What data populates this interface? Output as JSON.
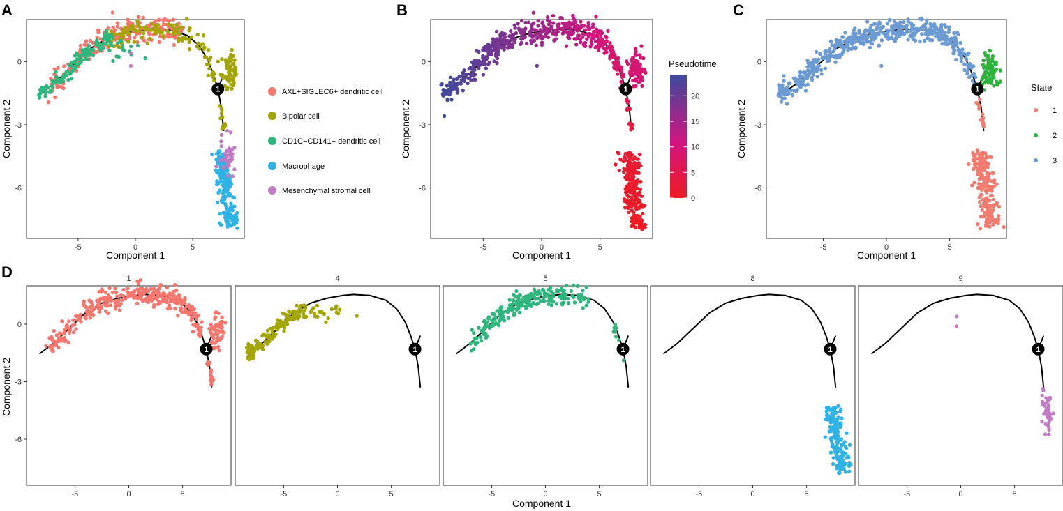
{
  "panel_letters": [
    "A",
    "B",
    "C",
    "D"
  ],
  "axes": {
    "xlabel": "Component 1",
    "ylabel": "Component 2"
  },
  "branch_node_label": "1",
  "colors": {
    "AXL+SIGLEC6+ dendritic cell": "#F8766D",
    "Bipolar cell": "#A3A500",
    "CD1C-CD141- dendritic cell": "#2EB67D",
    "Macrophage": "#2FB2E6",
    "Mesenchymal stromal cell": "#C17BC4",
    "state_1": "#F37B6F",
    "state_2": "#2DB33B",
    "state_3": "#6C9BD3",
    "trajectory": "#000000"
  },
  "legend_A": {
    "items": [
      "AXL+SIGLEC6+ dendritic cell",
      "Bipolar cell",
      "CD1C−CD141− dendritic cell",
      "Macrophage",
      "Mesenchymal stromal cell"
    ]
  },
  "legend_B": {
    "title": "Pseudotime",
    "ticks": [
      "20",
      "15",
      "10",
      "5",
      "0"
    ],
    "tick_values": [
      20,
      15,
      10,
      5,
      0
    ],
    "max": 24,
    "low_color": "#EE1C24",
    "mid_color": "#D2157F",
    "high_color": "#3E4A9D"
  },
  "legend_C": {
    "title": "State",
    "items": [
      "1",
      "2",
      "3"
    ]
  },
  "facet_labels": [
    "1",
    "4",
    "5",
    "8",
    "9"
  ],
  "chart_data": [
    {
      "panel": "A",
      "type": "scatter",
      "color_by": "Cell type",
      "xlim": [
        -9.5,
        9.5
      ],
      "ylim": [
        -8.4,
        2
      ],
      "xticks": [
        -5,
        0,
        5
      ],
      "yticks": [
        -6,
        -3,
        0
      ],
      "trajectory": [
        [
          -8.3,
          -1.55
        ],
        [
          -7,
          -1.0
        ],
        [
          -5.5,
          -0.2
        ],
        [
          -4,
          0.6
        ],
        [
          -2.5,
          1.1
        ],
        [
          -1,
          1.35
        ],
        [
          0.5,
          1.5
        ],
        [
          1.5,
          1.55
        ],
        [
          3,
          1.5
        ],
        [
          4.5,
          1.25
        ],
        [
          5.5,
          0.8
        ],
        [
          6.3,
          0.1
        ],
        [
          6.8,
          -0.6
        ],
        [
          7.2,
          -1.3
        ]
      ],
      "trajectory_branch": [
        [
          7.2,
          -1.3
        ],
        [
          7.5,
          -2.2
        ],
        [
          7.7,
          -3.3
        ]
      ],
      "trajectory_spur": [
        [
          7.2,
          -1.3
        ],
        [
          7.7,
          -0.6
        ]
      ],
      "branch_node": [
        7.2,
        -1.3
      ],
      "clusters": [
        {
          "group": "AXL+SIGLEC6+ dendritic cell",
          "color": "#F8766D",
          "n": 230,
          "kind": "arc",
          "t": [
            -7.5,
            4.2
          ],
          "spread": 0.3,
          "order": 1
        },
        {
          "group": "Bipolar cell",
          "color": "#A3A500",
          "n": 120,
          "kind": "arc",
          "t": [
            -2.5,
            7.0
          ],
          "spread": 0.25,
          "order": 2
        },
        {
          "group": "Bipolar cell",
          "color": "#A3A500",
          "n": 80,
          "kind": "blob",
          "cx": 8.2,
          "cy": -0.4,
          "sx": 0.35,
          "sy": 0.4,
          "order": 2
        },
        {
          "group": "Bipolar cell",
          "color": "#A3A500",
          "n": 15,
          "kind": "line",
          "from": [
            7.3,
            -1.8
          ],
          "to": [
            7.7,
            -3.2
          ],
          "spread": 0.1,
          "order": 2
        },
        {
          "group": "CD1C-CD141- dendritic cell",
          "color": "#2EB67D",
          "n": 130,
          "kind": "arc",
          "t": [
            -8.5,
            -2.0
          ],
          "spread": 0.2,
          "order": 3
        },
        {
          "group": "CD1C-CD141- dendritic cell",
          "color": "#2EB67D",
          "n": 15,
          "kind": "blob",
          "cx": -0.8,
          "cy": 0.6,
          "sx": 0.8,
          "sy": 0.3,
          "order": 3
        },
        {
          "group": "Macrophage",
          "color": "#2FB2E6",
          "n": 180,
          "kind": "line",
          "from": [
            7.4,
            -4.3
          ],
          "to": [
            8.3,
            -7.8
          ],
          "spread": 0.35,
          "order": 4
        },
        {
          "group": "Mesenchymal stromal cell",
          "color": "#C17BC4",
          "n": 40,
          "kind": "blob",
          "cx": 8.0,
          "cy": -4.6,
          "sx": 0.3,
          "sy": 0.5,
          "order": 5
        },
        {
          "group": "Mesenchymal stromal cell",
          "color": "#C17BC4",
          "n": 2,
          "kind": "points",
          "pts": [
            [
              -0.4,
              0.4
            ],
            [
              -0.4,
              -0.2
            ]
          ],
          "order": 5
        }
      ]
    },
    {
      "panel": "B",
      "type": "scatter",
      "color_by": "Pseudotime",
      "xlim": [
        -9.5,
        9.5
      ],
      "ylim": [
        -8.4,
        2
      ],
      "xticks": [
        -5,
        0,
        5
      ],
      "yticks": [
        -6,
        -3,
        0
      ],
      "pseudotime_range": [
        0,
        24
      ],
      "clusters": [
        {
          "kind": "arc",
          "t": [
            -8.5,
            7.0
          ],
          "spread": 0.28,
          "n": 520,
          "pt": [
            24,
            8
          ]
        },
        {
          "kind": "blob",
          "cx": 8.2,
          "cy": -0.4,
          "sx": 0.35,
          "sy": 0.4,
          "n": 80,
          "pt": [
            9,
            10
          ]
        },
        {
          "kind": "line",
          "from": [
            7.3,
            -1.8
          ],
          "to": [
            7.7,
            -3.2
          ],
          "spread": 0.1,
          "n": 15,
          "pt": [
            5,
            3
          ]
        },
        {
          "kind": "line",
          "from": [
            7.4,
            -4.3
          ],
          "to": [
            8.3,
            -7.8
          ],
          "spread": 0.38,
          "n": 220,
          "pt": [
            2,
            0
          ]
        },
        {
          "kind": "points",
          "pts": [
            [
              -0.4,
              -0.2
            ]
          ],
          "n": 1,
          "pt": [
            20,
            20
          ]
        }
      ]
    },
    {
      "panel": "C",
      "type": "scatter",
      "color_by": "State",
      "xlim": [
        -9.5,
        9.5
      ],
      "ylim": [
        -8.4,
        2
      ],
      "xticks": [
        -5,
        0,
        5
      ],
      "yticks": [
        -6,
        -3,
        0
      ],
      "clusters": [
        {
          "group": "3",
          "color": "#6C9BD3",
          "kind": "arc",
          "t": [
            -8.5,
            7.0
          ],
          "spread": 0.28,
          "n": 520
        },
        {
          "group": "3",
          "color": "#6C9BD3",
          "kind": "points",
          "pts": [
            [
              -0.4,
              -0.2
            ]
          ],
          "n": 1
        },
        {
          "group": "2",
          "color": "#2DB33B",
          "kind": "blob",
          "cx": 8.2,
          "cy": -0.4,
          "sx": 0.35,
          "sy": 0.4,
          "n": 80
        },
        {
          "group": "1",
          "color": "#F37B6F",
          "kind": "line",
          "from": [
            7.3,
            -1.8
          ],
          "to": [
            7.7,
            -3.2
          ],
          "spread": 0.1,
          "n": 15
        },
        {
          "group": "1",
          "color": "#F37B6F",
          "kind": "line",
          "from": [
            7.4,
            -4.3
          ],
          "to": [
            8.3,
            -7.8
          ],
          "spread": 0.38,
          "n": 220
        }
      ]
    },
    {
      "panel": "D",
      "type": "scatter",
      "faceted_by": "Cluster",
      "xlim": [
        -9.5,
        9.5
      ],
      "ylim": [
        -8.4,
        2
      ],
      "xticks": [
        -5,
        0,
        5
      ],
      "yticks": [
        -6,
        -3,
        0
      ],
      "facets": [
        {
          "label": "1",
          "color": "#F8766D",
          "clusters": [
            {
              "kind": "arc",
              "t": [
                -7.5,
                6.8
              ],
              "spread": 0.28,
              "n": 330
            },
            {
              "kind": "blob",
              "cx": 8.2,
              "cy": -0.4,
              "sx": 0.35,
              "sy": 0.4,
              "n": 60
            },
            {
              "kind": "line",
              "from": [
                7.3,
                -1.8
              ],
              "to": [
                7.7,
                -3.2
              ],
              "spread": 0.1,
              "n": 15
            }
          ]
        },
        {
          "label": "4",
          "color": "#A3A500",
          "clusters": [
            {
              "kind": "arc",
              "t": [
                -8.5,
                -3.0
              ],
              "spread": 0.2,
              "n": 140
            },
            {
              "kind": "blob",
              "cx": -2.0,
              "cy": 0.6,
              "sx": 1.3,
              "sy": 0.2,
              "n": 30
            }
          ]
        },
        {
          "label": "5",
          "color": "#2EB67D",
          "clusters": [
            {
              "kind": "arc",
              "t": [
                -7.0,
                4.0
              ],
              "spread": 0.25,
              "n": 220
            },
            {
              "kind": "line",
              "from": [
                6.3,
                0.0
              ],
              "to": [
                7.3,
                -2.0
              ],
              "spread": 0.15,
              "n": 10
            }
          ]
        },
        {
          "label": "8",
          "color": "#2FB2E6",
          "clusters": [
            {
              "kind": "line",
              "from": [
                7.4,
                -4.3
              ],
              "to": [
                8.3,
                -7.8
              ],
              "spread": 0.35,
              "n": 180
            }
          ]
        },
        {
          "label": "9",
          "color": "#C17BC4",
          "clusters": [
            {
              "kind": "blob",
              "cx": 8.1,
              "cy": -4.6,
              "sx": 0.28,
              "sy": 0.45,
              "n": 45
            },
            {
              "kind": "points",
              "pts": [
                [
                  -0.4,
                  0.4
                ],
                [
                  -0.4,
                  -0.1
                ]
              ],
              "n": 2
            }
          ]
        }
      ]
    }
  ]
}
